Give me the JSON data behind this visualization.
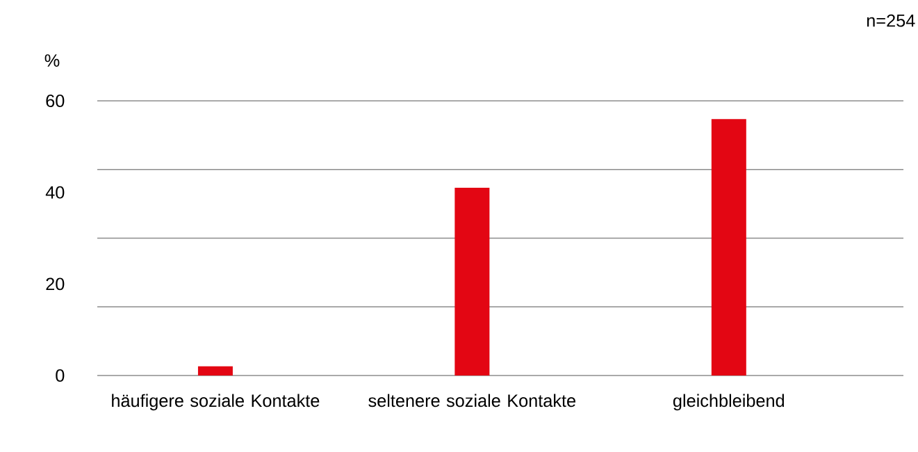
{
  "chart_data": {
    "type": "bar",
    "ylabel": "%",
    "annotations": [
      "n=254"
    ],
    "categories": [
      "häufigere soziale Kontakte",
      "seltenere soziale Kontakte",
      "gleichbleibend"
    ],
    "values": [
      2,
      41,
      56
    ],
    "color": "#e30613",
    "ylim": [
      0,
      60
    ],
    "yticks": [
      0,
      20,
      40,
      60
    ],
    "ref_lines": [
      {
        "axis": "y",
        "value": 15,
        "color": "#8c8c8c"
      },
      {
        "axis": "y",
        "value": 30,
        "color": "#8c8c8c"
      },
      {
        "axis": "y",
        "value": 45,
        "color": "#8c8c8c"
      },
      {
        "axis": "y",
        "value": 60,
        "color": "#8c8c8c"
      }
    ]
  }
}
